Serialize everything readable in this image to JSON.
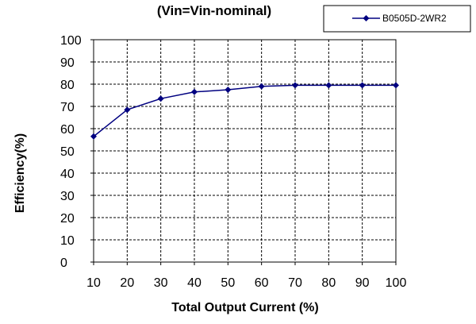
{
  "chart_data": {
    "type": "line",
    "title": "(Vin=Vin-nominal)",
    "xlabel": "Total Output Current (%)",
    "ylabel": "Efficiency(%)",
    "x": [
      10,
      20,
      30,
      40,
      50,
      60,
      70,
      80,
      90,
      100
    ],
    "xlim": [
      10,
      100
    ],
    "ylim": [
      0,
      100
    ],
    "x_ticks": [
      10,
      20,
      30,
      40,
      50,
      60,
      70,
      80,
      90,
      100
    ],
    "y_ticks": [
      0,
      10,
      20,
      30,
      40,
      50,
      60,
      70,
      80,
      90,
      100
    ],
    "grid": true,
    "legend_position": "top-right",
    "series": [
      {
        "name": "B0505D-2WR2",
        "color": "#000080",
        "marker": "diamond",
        "values": [
          56.5,
          68.5,
          73.5,
          76.5,
          77.5,
          79,
          79.5,
          79.5,
          79.5,
          79.5
        ]
      }
    ]
  }
}
